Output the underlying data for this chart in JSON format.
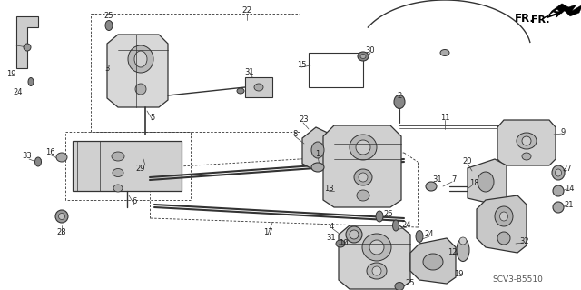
{
  "bg_color": "#ffffff",
  "line_color": "#333333",
  "text_color": "#222222",
  "diagram_id": "SCV3-B5510",
  "fr_label": "FR.",
  "figsize": [
    6.4,
    3.19
  ],
  "dpi": 100
}
